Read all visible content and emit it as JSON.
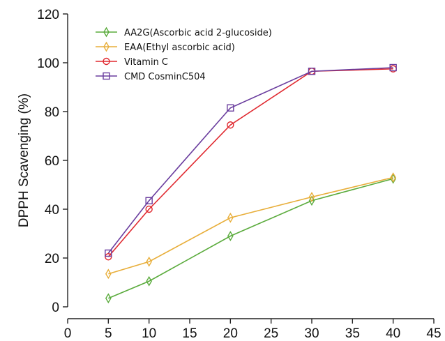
{
  "chart_data": {
    "type": "line",
    "title": "",
    "xlabel": "",
    "ylabel": "DPPH Scavenging (%)",
    "xlim": [
      0,
      45
    ],
    "ylim": [
      0,
      120
    ],
    "xticks": [
      0,
      5,
      10,
      15,
      20,
      25,
      30,
      35,
      40,
      45
    ],
    "yticks": [
      0,
      20,
      40,
      60,
      80,
      100,
      120
    ],
    "grid": false,
    "legend_position": "top-left",
    "series": [
      {
        "name": "AA2G(Ascorbic acid 2-glucoside)",
        "color": "#5aab3c",
        "marker": "diamond",
        "x": [
          5,
          10,
          20,
          30,
          40
        ],
        "y": [
          3.5,
          10.5,
          29,
          43.5,
          52.5
        ]
      },
      {
        "name": "EAA(Ethyl ascorbic acid)",
        "color": "#e8ae3a",
        "marker": "diamond",
        "x": [
          5,
          10,
          20,
          30,
          40
        ],
        "y": [
          13.5,
          18.5,
          36.5,
          45,
          53
        ]
      },
      {
        "name": "Vitamin C",
        "color": "#e0282f",
        "marker": "circle",
        "x": [
          5,
          10,
          20,
          30,
          40
        ],
        "y": [
          20.5,
          40,
          74.5,
          96.5,
          97.5
        ]
      },
      {
        "name": "CMD CosminC504",
        "color": "#6a3d9e",
        "marker": "square",
        "x": [
          5,
          10,
          20,
          30,
          40
        ],
        "y": [
          22,
          43.5,
          81.5,
          96.5,
          98
        ]
      }
    ]
  }
}
